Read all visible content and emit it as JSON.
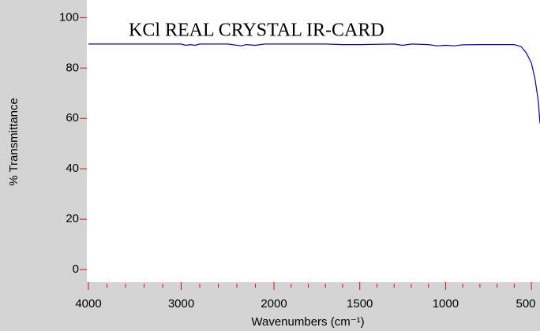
{
  "chart_data": {
    "type": "line",
    "title": "KCl REAL CRYSTAL IR-CARD",
    "xlabel": "Wavenumbers (cm⁻¹)",
    "ylabel": "% Transmittance",
    "x": [
      4000,
      3000,
      2950,
      2900,
      2850,
      2800,
      2500,
      2350,
      2300,
      2200,
      2100,
      1700,
      1600,
      1500,
      1300,
      1250,
      1200,
      1100,
      1050,
      1000,
      950,
      900,
      800,
      600,
      560,
      530,
      500,
      480,
      460,
      450
    ],
    "series": [
      {
        "name": "KCl",
        "color": "#0000cc",
        "values": [
          89.5,
          89.5,
          89,
          89.3,
          89,
          89.5,
          89.5,
          88.8,
          89.3,
          89,
          89.5,
          89.5,
          89.3,
          89.3,
          89.5,
          89,
          89.5,
          89.3,
          88.8,
          89,
          88.8,
          89.2,
          89.3,
          89.3,
          88.5,
          86,
          82,
          76,
          67,
          58
        ]
      }
    ],
    "xlim": [
      4000,
      450
    ],
    "x_break": 2000,
    "xticks": [
      4000,
      3000,
      2000,
      1500,
      1000,
      500
    ],
    "xminor_ticks": [
      3800,
      3600,
      3400,
      3200,
      2800,
      2600,
      2400,
      2200,
      1900,
      1800,
      1700,
      1600,
      1400,
      1300,
      1200,
      1100,
      900,
      800,
      700,
      600
    ],
    "ylim": [
      -5,
      107
    ],
    "yticks": [
      0,
      20,
      40,
      60,
      80,
      100
    ],
    "tick_color": "#ff0000"
  }
}
